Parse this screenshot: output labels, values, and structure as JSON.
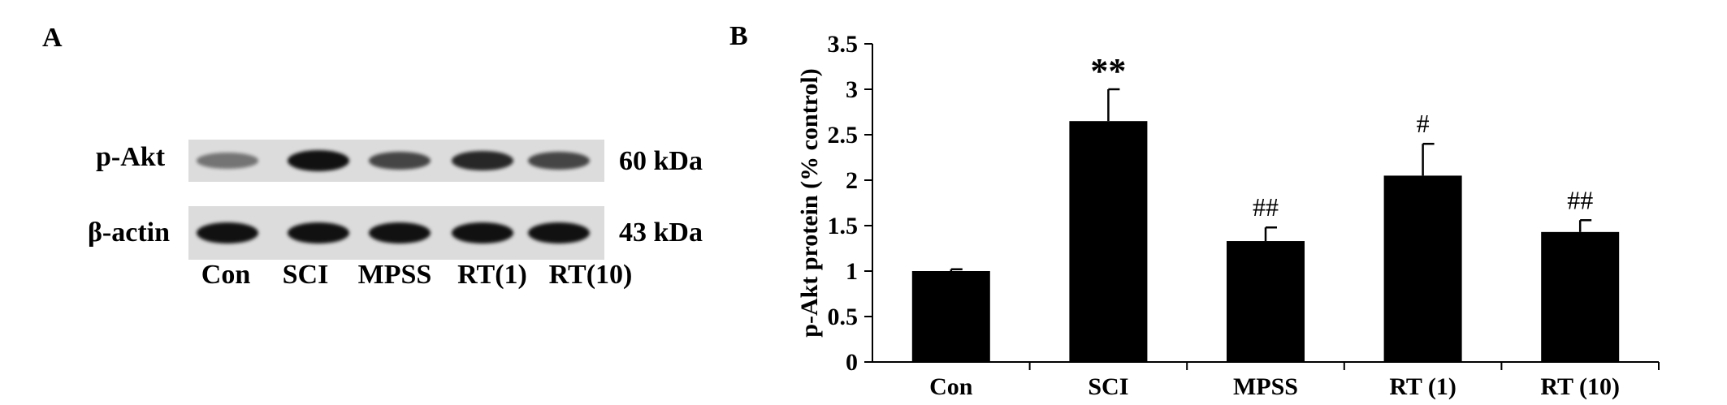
{
  "panel_a": {
    "letter": "A",
    "rows": [
      {
        "label": "p-Akt",
        "size": "60 kDa",
        "intensities": [
          0.35,
          1.0,
          0.65,
          0.85,
          0.65
        ]
      },
      {
        "label": "β-actin",
        "size": "43 kDa",
        "intensities": [
          1.0,
          1.0,
          1.0,
          1.0,
          1.0
        ]
      }
    ],
    "lanes": [
      "Con",
      "SCI",
      "MPSS",
      "RT(1)",
      "RT(10)"
    ]
  },
  "panel_b": {
    "letter": "B"
  },
  "chart_data": {
    "type": "bar",
    "categories": [
      "Con",
      "SCI",
      "MPSS",
      "RT (1)",
      "RT (10)"
    ],
    "values": [
      1.0,
      2.65,
      1.33,
      2.05,
      1.43
    ],
    "errors": [
      0.02,
      0.35,
      0.15,
      0.35,
      0.13
    ],
    "annotations": [
      "",
      "**",
      "##",
      "#",
      "##"
    ],
    "ylabel": "p-Akt protein (% control)",
    "xlabel": "",
    "ylim": [
      0,
      3.5
    ],
    "yticks": [
      "0",
      "0.5",
      "1",
      "1.5",
      "2",
      "2.5",
      "3",
      "3.5"
    ],
    "bar_color": "#000000",
    "grid": false
  }
}
